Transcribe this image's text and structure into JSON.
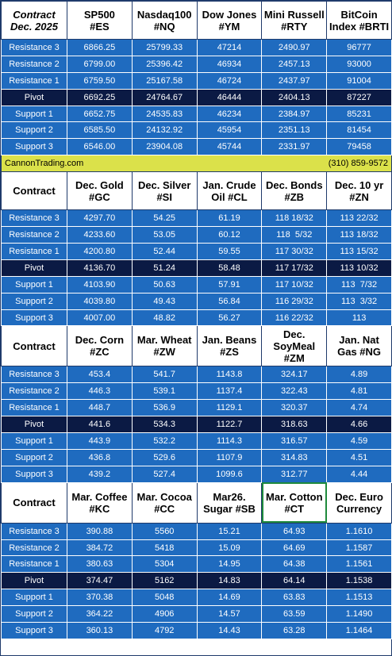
{
  "rowLabels": [
    "Resistance 3",
    "Resistance 2",
    "Resistance 1",
    "Pivot",
    "Support 1",
    "Support 2",
    "Support 3"
  ],
  "banner": {
    "site": "CannonTrading.com",
    "phone": "(310) 859-9572"
  },
  "sections": [
    {
      "header": [
        "Contract\nDec. 2025",
        "SP500\n#ES",
        "Nasdaq100\n#NQ",
        "Dow Jones\n#YM",
        "Mini Russell\n#RTY",
        "BitCoin\nIndex #BRTI"
      ],
      "rows": [
        [
          "6866.25",
          "25799.33",
          "47214",
          "2490.97",
          "96777"
        ],
        [
          "6799.00",
          "25396.42",
          "46934",
          "2457.13",
          "93000"
        ],
        [
          "6759.50",
          "25167.58",
          "46724",
          "2437.97",
          "91004"
        ],
        [
          "6692.25",
          "24764.67",
          "46444",
          "2404.13",
          "87227"
        ],
        [
          "6652.75",
          "24535.83",
          "46234",
          "2384.97",
          "85231"
        ],
        [
          "6585.50",
          "24132.92",
          "45954",
          "2351.13",
          "81454"
        ],
        [
          "6546.00",
          "23904.08",
          "45744",
          "2331.97",
          "79458"
        ]
      ]
    },
    {
      "header": [
        "Contract",
        "Dec. Gold\n#GC",
        "Dec. Silver\n#SI",
        "Jan. Crude\nOil #CL",
        "Dec. Bonds\n#ZB",
        "Dec. 10 yr\n#ZN"
      ],
      "rows": [
        [
          "4297.70",
          "54.25",
          "61.19",
          "118 18/32",
          "113 22/32"
        ],
        [
          "4233.60",
          "53.05",
          "60.12",
          "118  5/32",
          "113 18/32"
        ],
        [
          "4200.80",
          "52.44",
          "59.55",
          "117 30/32",
          "113 15/32"
        ],
        [
          "4136.70",
          "51.24",
          "58.48",
          "117 17/32",
          "113 10/32"
        ],
        [
          "4103.90",
          "50.63",
          "57.91",
          "117 10/32",
          "113  7/32"
        ],
        [
          "4039.80",
          "49.43",
          "56.84",
          "116 29/32",
          "113  3/32"
        ],
        [
          "4007.00",
          "48.82",
          "56.27",
          "116 22/32",
          "113"
        ]
      ]
    },
    {
      "header": [
        "Contract",
        "Dec. Corn\n#ZC",
        "Mar.  Wheat\n#ZW",
        "Jan. Beans\n#ZS",
        "Dec.\nSoyMeal\n#ZM",
        "Jan. Nat\nGas #NG"
      ],
      "rows": [
        [
          "453.4",
          "541.7",
          "1143.8",
          "324.17",
          "4.89"
        ],
        [
          "446.3",
          "539.1",
          "1137.4",
          "322.43",
          "4.81"
        ],
        [
          "448.7",
          "536.9",
          "1129.1",
          "320.37",
          "4.74"
        ],
        [
          "441.6",
          "534.3",
          "1122.7",
          "318.63",
          "4.66"
        ],
        [
          "443.9",
          "532.2",
          "1114.3",
          "316.57",
          "4.59"
        ],
        [
          "436.8",
          "529.6",
          "1107.9",
          "314.83",
          "4.51"
        ],
        [
          "439.2",
          "527.4",
          "1099.6",
          "312.77",
          "4.44"
        ]
      ]
    },
    {
      "header": [
        "Contract",
        "Mar. Coffee\n#KC",
        "Mar. Cocoa\n#CC",
        "Mar26.\nSugar #SB",
        "Mar. Cotton\n#CT",
        "Dec. Euro\nCurrency"
      ],
      "rows": [
        [
          "390.88",
          "5560",
          "15.21",
          "64.93",
          "1.1610"
        ],
        [
          "384.72",
          "5418",
          "15.09",
          "64.69",
          "1.1587"
        ],
        [
          "380.63",
          "5304",
          "14.95",
          "64.38",
          "1.1561"
        ],
        [
          "374.47",
          "5162",
          "14.83",
          "64.14",
          "1.1538"
        ],
        [
          "370.38",
          "5048",
          "14.69",
          "63.83",
          "1.1513"
        ],
        [
          "364.22",
          "4906",
          "14.57",
          "63.59",
          "1.1490"
        ],
        [
          "360.13",
          "4792",
          "14.43",
          "63.28",
          "1.1464"
        ]
      ]
    }
  ],
  "colors": {
    "rowBlue": "#1f6bbf",
    "pivotNavy": "#0b1a44",
    "bannerYellow": "#dbe14a",
    "highlightGreen": "#1e8a3c"
  }
}
